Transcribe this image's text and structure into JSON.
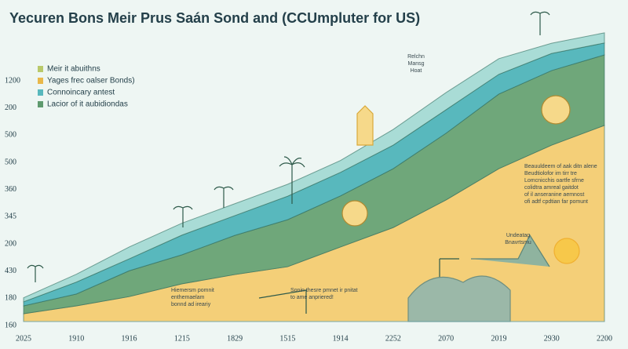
{
  "chart_data": {
    "type": "stacked_area",
    "title": "Yecuren Bons Meir Prus Saán Sond and (CCUmpluter for US)",
    "categories": [
      "2025",
      "1910",
      "1916",
      "1215",
      "1829",
      "1515",
      "1914",
      "2252",
      "2070",
      "2019",
      "2930",
      "2200"
    ],
    "y_labels": [
      "1200",
      "200",
      "500",
      "500",
      "360",
      "345",
      "200",
      "430",
      "180",
      "160"
    ],
    "ylim": [
      0,
      100
    ],
    "series": [
      {
        "name": "Yages frec oalser Bonds)",
        "color": "#f4cf78",
        "values": [
          2.7,
          5.4,
          8.6,
          13,
          16.2,
          18.9,
          25.7,
          32.4,
          41.9,
          52.7,
          60.8,
          67.6
        ]
      },
      {
        "name": "Lacior of it aubidiondas",
        "color": "#6fa77a",
        "values": [
          2.7,
          4.1,
          8.9,
          10,
          13.5,
          16.2,
          17.6,
          20.3,
          23,
          25.7,
          25.7,
          24.3
        ]
      },
      {
        "name": "Connoincary antest",
        "color": "#58b8bd",
        "values": [
          1.4,
          4.1,
          4.1,
          6.8,
          6.8,
          8.1,
          8.1,
          8.1,
          8.1,
          6.8,
          5.9,
          4.1
        ]
      },
      {
        "name": "Meir it abuithns",
        "color": "#a9dcd6",
        "values": [
          1.4,
          2.7,
          4.1,
          4.1,
          4.1,
          4.1,
          4.1,
          5.4,
          5.9,
          5.4,
          3.5,
          3.5
        ]
      }
    ],
    "annotations": [
      [
        "Beauuldeem of aak ditn alene",
        "Beudtiolofor im tirr tre",
        "Lomcnicchis oartfe sfrne",
        "colidtra amreal gaitdot",
        "of il anseranine aemnost",
        "ofi adtf cpdtian far pomunt"
      ],
      [
        "Hiemersm pomnit",
        "enthemaelam",
        "bonnd ad ireariy"
      ],
      [
        "Sonin thesre pmnet ir pnitat",
        "to ame anpriered!"
      ],
      [
        "Relchn",
        "Mansg",
        "Hoat"
      ],
      [
        "Undeatag",
        "Bnavrtsmu"
      ]
    ]
  }
}
